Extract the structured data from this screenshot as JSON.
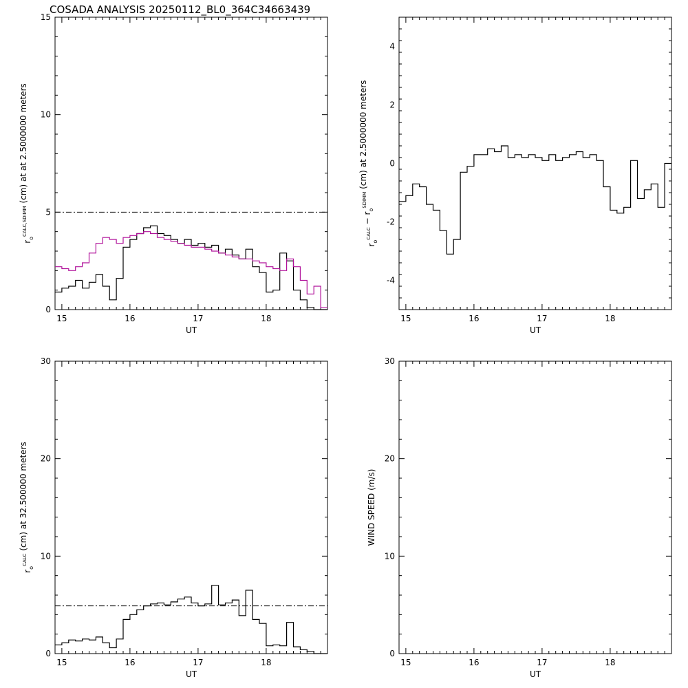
{
  "title": "COSADA ANALYSIS 20250112_BL0_364C34663439",
  "colors": {
    "axis": "#000000",
    "series_black": "#000000",
    "series_magenta": "#b0109a",
    "reference": "#000000"
  },
  "chart_data": [
    {
      "id": "p1",
      "type": "line",
      "step": true,
      "xlabel": "UT",
      "ylabel_parts": [
        "r",
        "o",
        "CALC,SDIMM",
        " (cm) at  at 2.5000000 meters"
      ],
      "xlim": [
        14.9,
        18.9
      ],
      "ylim": [
        0,
        15
      ],
      "xticks": [
        15,
        16,
        17,
        18
      ],
      "yticks": [
        0,
        5,
        10,
        15
      ],
      "reference_line": 5,
      "series": [
        {
          "color": "#000000",
          "x": [
            14.9,
            15.0,
            15.1,
            15.2,
            15.3,
            15.4,
            15.5,
            15.6,
            15.7,
            15.8,
            15.9,
            16.0,
            16.1,
            16.2,
            16.3,
            16.4,
            16.5,
            16.6,
            16.7,
            16.8,
            16.9,
            17.0,
            17.1,
            17.2,
            17.3,
            17.4,
            17.5,
            17.6,
            17.7,
            17.8,
            17.9,
            18.0,
            18.1,
            18.2,
            18.3,
            18.4,
            18.5,
            18.6,
            18.7,
            18.8
          ],
          "values": [
            0.9,
            1.1,
            1.2,
            1.5,
            1.1,
            1.4,
            1.8,
            1.2,
            0.5,
            1.6,
            3.2,
            3.6,
            3.9,
            4.2,
            4.3,
            3.9,
            3.8,
            3.6,
            3.4,
            3.6,
            3.3,
            3.4,
            3.2,
            3.3,
            2.9,
            3.1,
            2.8,
            2.6,
            3.1,
            2.2,
            1.9,
            0.9,
            1.0,
            2.9,
            2.5,
            1.0,
            0.5,
            0.1,
            0.0,
            0.0
          ]
        },
        {
          "color": "#b0109a",
          "x": [
            14.9,
            15.0,
            15.1,
            15.2,
            15.3,
            15.4,
            15.5,
            15.6,
            15.7,
            15.8,
            15.9,
            16.0,
            16.1,
            16.2,
            16.3,
            16.4,
            16.5,
            16.6,
            16.7,
            16.8,
            16.9,
            17.0,
            17.1,
            17.2,
            17.3,
            17.4,
            17.5,
            17.6,
            17.7,
            17.8,
            17.9,
            18.0,
            18.1,
            18.2,
            18.3,
            18.4,
            18.5,
            18.6,
            18.7,
            18.8
          ],
          "values": [
            2.2,
            2.1,
            2.0,
            2.2,
            2.4,
            2.9,
            3.4,
            3.7,
            3.6,
            3.4,
            3.7,
            3.8,
            3.9,
            4.0,
            3.9,
            3.7,
            3.6,
            3.5,
            3.4,
            3.3,
            3.2,
            3.2,
            3.1,
            3.0,
            2.9,
            2.8,
            2.7,
            2.6,
            2.6,
            2.5,
            2.4,
            2.2,
            2.1,
            2.0,
            2.6,
            2.2,
            1.5,
            0.8,
            1.2,
            0.1
          ]
        }
      ]
    },
    {
      "id": "p2",
      "type": "line",
      "step": true,
      "xlabel": "UT",
      "ylabel_parts": [
        "r",
        "o",
        "CALC",
        "  −  ",
        "r",
        "o",
        "SDIMM",
        " (cm) at 2.5000000 meters"
      ],
      "xlim": [
        14.9,
        18.9
      ],
      "ylim": [
        -5,
        5
      ],
      "xticks": [
        15,
        16,
        17,
        18
      ],
      "yticks": [
        -4,
        -2,
        0,
        2,
        4
      ],
      "series": [
        {
          "color": "#000000",
          "x": [
            14.9,
            15.0,
            15.1,
            15.2,
            15.3,
            15.4,
            15.5,
            15.6,
            15.7,
            15.8,
            15.9,
            16.0,
            16.1,
            16.2,
            16.3,
            16.4,
            16.5,
            16.6,
            16.7,
            16.8,
            16.9,
            17.0,
            17.1,
            17.2,
            17.3,
            17.4,
            17.5,
            17.6,
            17.7,
            17.8,
            17.9,
            18.0,
            18.1,
            18.2,
            18.3,
            18.4,
            18.5,
            18.6,
            18.7,
            18.8
          ],
          "values": [
            -1.3,
            -1.1,
            -0.7,
            -0.8,
            -1.4,
            -1.6,
            -2.3,
            -3.1,
            -2.6,
            -0.3,
            -0.1,
            0.3,
            0.3,
            0.5,
            0.4,
            0.6,
            0.2,
            0.3,
            0.2,
            0.3,
            0.2,
            0.1,
            0.3,
            0.1,
            0.2,
            0.3,
            0.4,
            0.2,
            0.3,
            0.1,
            -0.8,
            -1.6,
            -1.7,
            -1.5,
            0.1,
            -1.2,
            -0.9,
            -0.7,
            -1.5,
            0.0
          ]
        }
      ]
    },
    {
      "id": "p3",
      "type": "line",
      "step": true,
      "xlabel": "UT",
      "ylabel_parts": [
        "r",
        "o",
        "CALC",
        " (cm) at 32.500000 meters"
      ],
      "xlim": [
        14.9,
        18.9
      ],
      "ylim": [
        0,
        30
      ],
      "xticks": [
        15,
        16,
        17,
        18
      ],
      "yticks": [
        0,
        10,
        20,
        30
      ],
      "reference_line": 4.9,
      "series": [
        {
          "color": "#000000",
          "x": [
            14.9,
            15.0,
            15.1,
            15.2,
            15.3,
            15.4,
            15.5,
            15.6,
            15.7,
            15.8,
            15.9,
            16.0,
            16.1,
            16.2,
            16.3,
            16.4,
            16.5,
            16.6,
            16.7,
            16.8,
            16.9,
            17.0,
            17.1,
            17.2,
            17.3,
            17.4,
            17.5,
            17.6,
            17.7,
            17.8,
            17.9,
            18.0,
            18.1,
            18.2,
            18.3,
            18.4,
            18.5,
            18.6,
            18.7,
            18.8
          ],
          "values": [
            0.9,
            1.1,
            1.4,
            1.3,
            1.5,
            1.4,
            1.7,
            1.1,
            0.6,
            1.5,
            3.5,
            4.0,
            4.5,
            4.9,
            5.1,
            5.2,
            5.0,
            5.3,
            5.6,
            5.8,
            5.2,
            4.9,
            5.1,
            7.0,
            5.0,
            5.2,
            5.5,
            3.9,
            6.5,
            3.5,
            3.1,
            0.8,
            0.9,
            0.8,
            3.2,
            0.7,
            0.4,
            0.2,
            0.0,
            0.0
          ]
        }
      ]
    },
    {
      "id": "p4",
      "type": "line",
      "xlabel": "UT",
      "ylabel_parts": [
        "WIND SPEED (m/s)"
      ],
      "xlim": [
        14.9,
        18.9
      ],
      "ylim": [
        0,
        30
      ],
      "xticks": [
        15,
        16,
        17,
        18
      ],
      "yticks": [
        0,
        10,
        20,
        30
      ],
      "series": []
    }
  ]
}
